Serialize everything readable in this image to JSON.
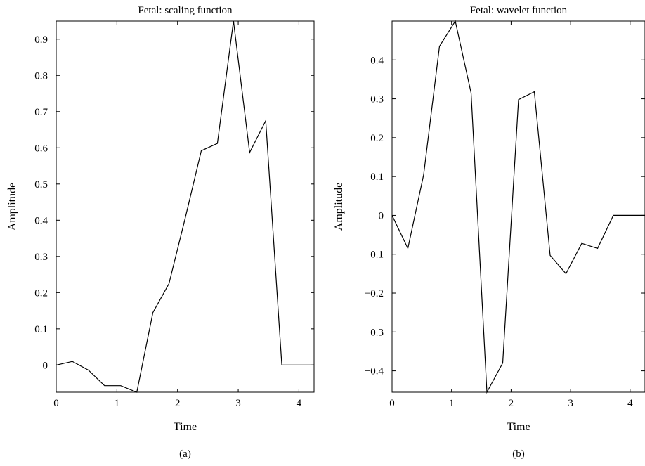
{
  "chart_data": [
    {
      "type": "line",
      "title": "Fetal: scaling function",
      "xlabel": "Time",
      "ylabel": "Amplitude",
      "caption": "(a)",
      "xlim": [
        0,
        4.25
      ],
      "ylim": [
        -0.075,
        0.95
      ],
      "xticks": [
        0,
        1,
        2,
        3,
        4
      ],
      "xtick_labels": [
        "0",
        "1",
        "2",
        "3",
        "4"
      ],
      "yticks": [
        0,
        0.1,
        0.2,
        0.3,
        0.4,
        0.5,
        0.6,
        0.7,
        0.8,
        0.9
      ],
      "ytick_labels": [
        "0",
        "0.1",
        "0.2",
        "0.3",
        "0.4",
        "0.5",
        "0.6",
        "0.7",
        "0.8",
        "0.9"
      ],
      "grid": false,
      "series": [
        {
          "line_color": "#000000",
          "x": [
            0,
            0.266,
            0.531,
            0.797,
            1.063,
            1.328,
            1.594,
            1.859,
            2.125,
            2.391,
            2.656,
            2.922,
            3.188,
            3.453,
            3.719,
            3.984,
            4.25
          ],
          "y": [
            0,
            0.01,
            -0.014,
            -0.057,
            -0.057,
            -0.075,
            0.145,
            0.225,
            0.405,
            0.592,
            0.612,
            0.95,
            0.587,
            0.675,
            0,
            0,
            0
          ]
        }
      ]
    },
    {
      "type": "line",
      "title": "Fetal: wavelet function",
      "xlabel": "Time",
      "ylabel": "Amplitude",
      "caption": "(b)",
      "xlim": [
        0,
        4.25
      ],
      "ylim": [
        -0.455,
        0.5
      ],
      "xticks": [
        0,
        1,
        2,
        3,
        4
      ],
      "xtick_labels": [
        "0",
        "1",
        "2",
        "3",
        "4"
      ],
      "yticks": [
        -0.4,
        -0.3,
        -0.2,
        -0.1,
        0,
        0.1,
        0.2,
        0.3,
        0.4
      ],
      "ytick_labels": [
        "−0.4",
        "−0.3",
        "−0.2",
        "−0.1",
        "0",
        "0.1",
        "0.2",
        "0.3",
        "0.4"
      ],
      "grid": false,
      "series": [
        {
          "line_color": "#000000",
          "x": [
            0,
            0.266,
            0.531,
            0.797,
            1.063,
            1.328,
            1.594,
            1.859,
            2.125,
            2.391,
            2.656,
            2.922,
            3.188,
            3.453,
            3.719,
            3.984,
            4.25
          ],
          "y": [
            0,
            -0.085,
            0.105,
            0.435,
            0.5,
            0.315,
            -0.455,
            -0.38,
            0.298,
            0.318,
            -0.103,
            -0.15,
            -0.072,
            -0.085,
            0,
            0,
            0
          ]
        }
      ]
    }
  ]
}
